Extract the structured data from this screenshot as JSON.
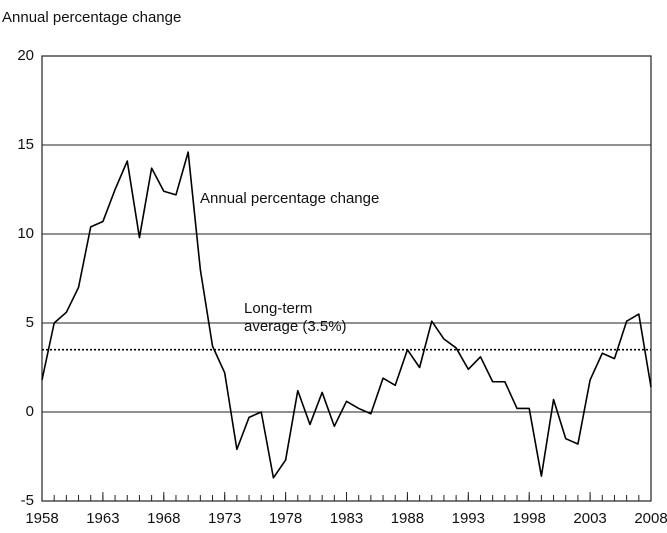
{
  "chart_data": {
    "type": "line",
    "y_label": "Annual percentage change",
    "x": [
      1958,
      1959,
      1960,
      1961,
      1962,
      1963,
      1964,
      1965,
      1966,
      1967,
      1968,
      1969,
      1970,
      1971,
      1972,
      1973,
      1974,
      1975,
      1976,
      1977,
      1978,
      1979,
      1980,
      1981,
      1982,
      1983,
      1984,
      1985,
      1986,
      1987,
      1988,
      1989,
      1990,
      1991,
      1992,
      1993,
      1994,
      1995,
      1996,
      1997,
      1998,
      1999,
      2000,
      2001,
      2002,
      2003,
      2004,
      2005,
      2006,
      2007,
      2008
    ],
    "series": [
      {
        "name": "Annual percentage change",
        "color": "#000000",
        "values": [
          1.8,
          5.0,
          5.6,
          7.0,
          10.4,
          10.7,
          12.5,
          14.1,
          9.8,
          13.7,
          12.4,
          12.2,
          14.6,
          8.0,
          3.7,
          2.2,
          -2.1,
          -0.3,
          0.0,
          -3.7,
          -2.7,
          1.2,
          -0.7,
          1.1,
          -0.8,
          0.6,
          0.2,
          -0.1,
          1.9,
          1.5,
          3.5,
          2.5,
          5.1,
          4.1,
          3.6,
          2.4,
          3.1,
          1.7,
          1.7,
          0.2,
          0.2,
          -3.6,
          0.7,
          -1.5,
          -1.8,
          1.8,
          3.3,
          3.0,
          5.1,
          5.5,
          1.4
        ]
      }
    ],
    "xlim": [
      1958,
      2008
    ],
    "xticks": [
      1958,
      1963,
      1968,
      1973,
      1978,
      1983,
      1988,
      1993,
      1998,
      2003,
      2008
    ],
    "ylim": [
      -5,
      20
    ],
    "yticks": [
      -5,
      0,
      5,
      10,
      15,
      20
    ],
    "grid": true,
    "reference_line": {
      "value": 3.5,
      "style": "dotted",
      "label": [
        "Long-term",
        "average (3.5%)"
      ]
    }
  }
}
